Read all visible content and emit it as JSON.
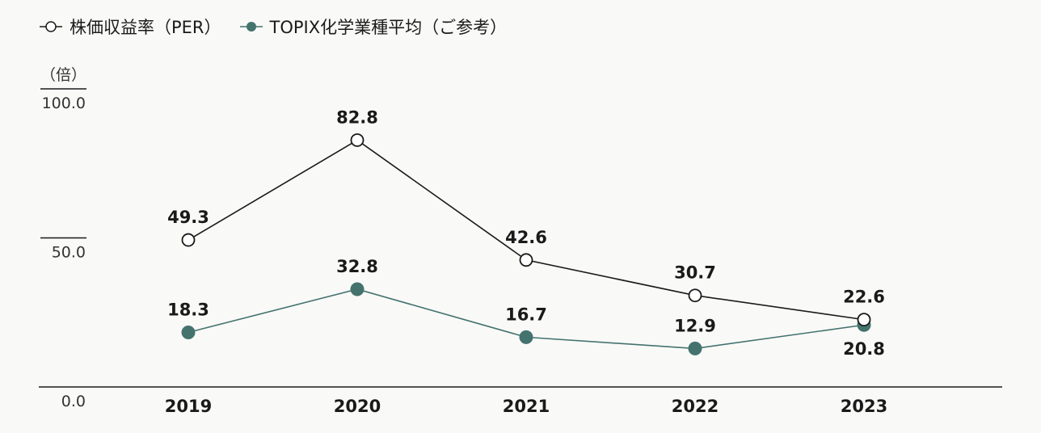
{
  "legend": {
    "per_label": "株価収益率（PER）",
    "topix_label": "TOPIX化学業種平均（ご参考）"
  },
  "chart_data": {
    "type": "line",
    "ylabel": "（倍）",
    "ylim": [
      0,
      100
    ],
    "yticks": [
      "100.0",
      "50.0",
      "0.0"
    ],
    "categories": [
      "2019",
      "2020",
      "2021",
      "2022",
      "2023"
    ],
    "series": [
      {
        "name": "株価収益率（PER）",
        "values": [
          49.3,
          82.8,
          42.6,
          30.7,
          22.6
        ],
        "labels": [
          "49.3",
          "82.8",
          "42.6",
          "30.7",
          "22.6"
        ],
        "color": "#1a1a1a",
        "marker": "hollow-circle"
      },
      {
        "name": "TOPIX化学業種平均（ご参考）",
        "values": [
          18.3,
          32.8,
          16.7,
          12.9,
          20.8
        ],
        "labels": [
          "18.3",
          "32.8",
          "16.7",
          "12.9",
          "20.8"
        ],
        "color": "#44736e",
        "marker": "filled-circle"
      }
    ]
  }
}
